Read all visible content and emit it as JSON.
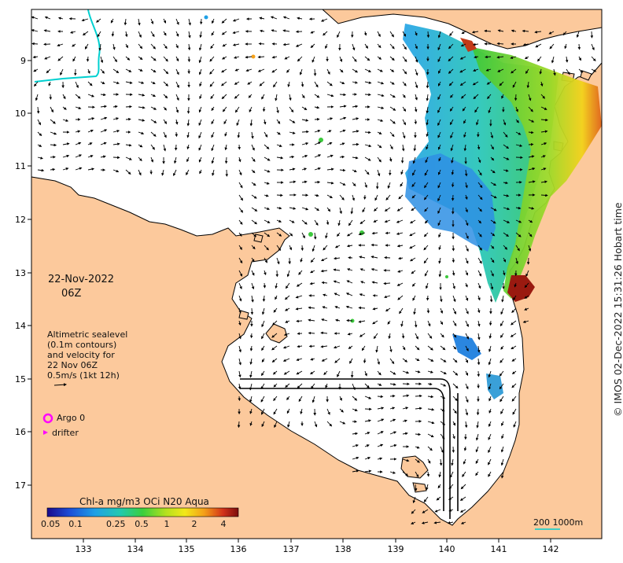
{
  "axes": {
    "x_ticks": [
      "133",
      "134",
      "135",
      "136",
      "137",
      "138",
      "139",
      "140",
      "141",
      "142"
    ],
    "y_ticks": [
      "9",
      "10",
      "11",
      "12",
      "13",
      "14",
      "15",
      "16",
      "17"
    ]
  },
  "annotation": {
    "date": "22-Nov-2022",
    "time": "06Z"
  },
  "legend": {
    "line1": "Altimetric sealevel",
    "line2": "(0.1m contours)",
    "line3": "and velocity for",
    "line4": "22 Nov 06Z",
    "line5": "0.5m/s (1kt 12h)"
  },
  "markers": {
    "argo_label": "Argo 0",
    "drifter_label": "drifter",
    "argo_color": "#ff00ff",
    "drifter_color": "#ff00ff"
  },
  "colorbar": {
    "title": "Chl-a mg/m3 OCi N20 Aqua",
    "ticks": [
      "0.05",
      "0.1",
      "0.25",
      "0.5",
      "1",
      "2",
      "4"
    ]
  },
  "scale": {
    "label": "200  1000m"
  },
  "credit": "© IMOS 02-Dec-2022 15:31:26 Hobart time",
  "colors": {
    "land": "#fcc99c",
    "ocean": "#ffffff",
    "coastline": "#000000",
    "contour": "#00d0d0"
  }
}
